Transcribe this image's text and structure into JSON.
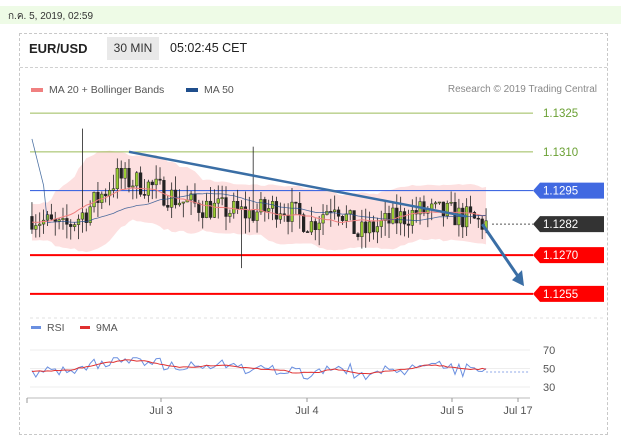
{
  "date_text": "ก.ค. 5, 2019, 02:59",
  "header": {
    "symbol": "EUR/USD",
    "timeframe": "30 MIN",
    "clock": "05:02:45 CET"
  },
  "legend": {
    "ma20": "MA 20 + Bollinger Bands",
    "ma50": "MA 50",
    "credit": "Research © 2019 Trading Central",
    "rsi": "RSI",
    "rsi_ma": "9MA"
  },
  "colors": {
    "ma20": "#f08080",
    "ma50": "#1f4e8c",
    "band": "#fde0e0",
    "candle": "#222222",
    "resistance": "#4169e1",
    "support": "#ff0000",
    "target": "#9bbb59",
    "arrow": "#3a6ea5"
  },
  "chart_data": {
    "type": "candlestick",
    "y_range": [
      1.1248,
      1.1332
    ],
    "x_labels": [
      "Jul 3",
      "Jul 4",
      "Jul 5",
      "Jul 17"
    ],
    "levels": [
      {
        "value": 1.1325,
        "label": "1.1325",
        "kind": "target"
      },
      {
        "value": 1.131,
        "label": "1.1310",
        "kind": "target"
      },
      {
        "value": 1.1295,
        "label": "1.1295",
        "kind": "resistance"
      },
      {
        "value": 1.1282,
        "label": "1.1282",
        "kind": "last"
      },
      {
        "value": 1.127,
        "label": "1.1270",
        "kind": "support"
      },
      {
        "value": 1.1255,
        "label": "1.1255",
        "kind": "support"
      }
    ],
    "trendline": {
      "start": 1.131,
      "end": 1.1285
    },
    "projection": {
      "from": 1.1282,
      "to": 1.1258
    },
    "rsi": {
      "range": [
        20,
        80
      ],
      "ticks": [
        "70",
        "50",
        "30"
      ]
    }
  }
}
